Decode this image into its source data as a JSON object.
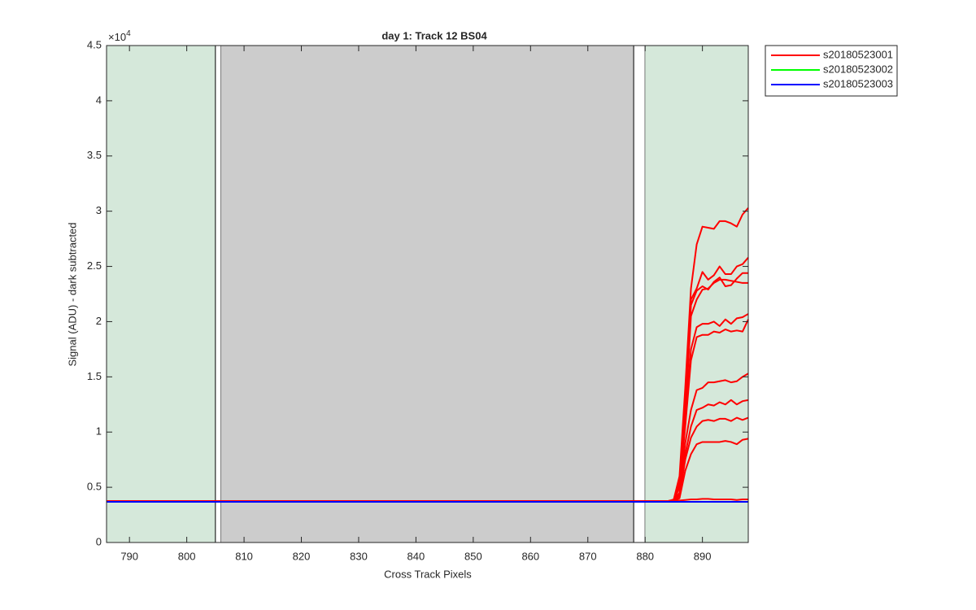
{
  "chart_data": {
    "type": "line",
    "title": "day 1: Track 12  BS04",
    "xlabel": "Cross Track Pixels",
    "ylabel": "Signal (ADU) - dark subtracted",
    "y_multiplier": {
      "base": "×10",
      "power": "4"
    },
    "xlim": [
      786,
      898
    ],
    "ylim": [
      0,
      45000
    ],
    "xticks": [
      790,
      800,
      810,
      820,
      830,
      840,
      850,
      860,
      870,
      880,
      890
    ],
    "yticks": [
      0,
      {
        "value": 5000,
        "label": "0.5"
      },
      {
        "value": 10000,
        "label": "1"
      },
      {
        "value": 15000,
        "label": "1.5"
      },
      {
        "value": 20000,
        "label": "2"
      },
      {
        "value": 25000,
        "label": "2.5"
      },
      {
        "value": 30000,
        "label": "3"
      },
      {
        "value": 35000,
        "label": "3.5"
      },
      {
        "value": 40000,
        "label": "4"
      },
      {
        "value": 45000,
        "label": "4.5"
      }
    ],
    "regions": [
      {
        "x": [
          786,
          805
        ],
        "color": "#d5e8da"
      },
      {
        "x": [
          805,
          806
        ],
        "color": "#ffffff",
        "edgecolor": "#000000"
      },
      {
        "x": [
          806,
          878
        ],
        "color": "#cccccc"
      },
      {
        "x": [
          878,
          880
        ],
        "color": "#ffffff",
        "edgecolor": "#000000"
      },
      {
        "x": [
          880,
          898
        ],
        "color": "#d5e8da"
      }
    ],
    "legend": "outside-top-right",
    "x": [
      786,
      884,
      885,
      886,
      887,
      888,
      889,
      890,
      891,
      892,
      893,
      894,
      895,
      896,
      897,
      898
    ],
    "series": [
      {
        "name": "s20180523001",
        "color": "#ff0000",
        "values": [
          [
            3750,
            3750,
            3900,
            6000,
            14000,
            23000,
            27000,
            28600,
            28500,
            28400,
            29100,
            29100,
            28900,
            28600,
            29700,
            30300
          ],
          [
            3750,
            3750,
            3850,
            5500,
            12000,
            22000,
            23000,
            24500,
            23800,
            24200,
            25000,
            24300,
            24300,
            25000,
            25200,
            25800
          ],
          [
            3750,
            3750,
            3850,
            5500,
            12000,
            21500,
            22800,
            23200,
            22900,
            23600,
            24000,
            23200,
            23300,
            23900,
            24400,
            24400
          ],
          [
            3750,
            3750,
            3850,
            5300,
            11500,
            20500,
            22000,
            22900,
            23000,
            23500,
            23800,
            23800,
            23700,
            23600,
            23500,
            23500
          ],
          [
            3750,
            3750,
            3800,
            5000,
            11000,
            17500,
            19500,
            19800,
            19800,
            20000,
            19600,
            20200,
            19800,
            20300,
            20400,
            20700
          ],
          [
            3750,
            3750,
            3800,
            5000,
            10500,
            16500,
            18600,
            18800,
            18800,
            19100,
            19000,
            19300,
            19100,
            19200,
            19100,
            20200
          ],
          [
            3750,
            3750,
            3800,
            4500,
            9000,
            12000,
            13800,
            14000,
            14500,
            14500,
            14600,
            14700,
            14500,
            14600,
            15000,
            15300
          ],
          [
            3750,
            3750,
            3800,
            4300,
            8000,
            10500,
            12000,
            12200,
            12500,
            12400,
            12700,
            12500,
            12900,
            12500,
            12800,
            12900
          ],
          [
            3750,
            3750,
            3800,
            4200,
            7500,
            9500,
            10500,
            11000,
            11100,
            11000,
            11200,
            11200,
            11000,
            11300,
            11100,
            11300
          ],
          [
            3750,
            3750,
            3780,
            4000,
            6500,
            8000,
            8900,
            9100,
            9100,
            9100,
            9100,
            9200,
            9100,
            8900,
            9300,
            9400
          ],
          [
            3750,
            3750,
            3760,
            3800,
            3850,
            3900,
            3900,
            3950,
            3950,
            3900,
            3900,
            3900,
            3900,
            3850,
            3900,
            3900
          ]
        ]
      },
      {
        "name": "s20180523002",
        "color": "#00ff00",
        "values": [
          [
            3680,
            3680,
            3680,
            3680,
            3680,
            3680,
            3680,
            3680,
            3680,
            3680,
            3680,
            3680,
            3680,
            3680,
            3680,
            3680
          ]
        ]
      },
      {
        "name": "s20180523003",
        "color": "#0000ff",
        "values": [
          [
            3680,
            3680,
            3680,
            3680,
            3680,
            3680,
            3680,
            3680,
            3680,
            3680,
            3680,
            3680,
            3680,
            3680,
            3680,
            3680
          ]
        ]
      }
    ]
  }
}
